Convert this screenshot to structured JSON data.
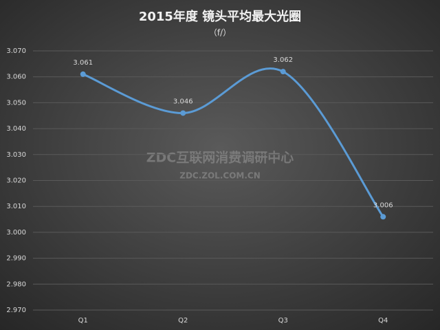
{
  "chart_data": {
    "type": "line",
    "title": "2015年度 镜头平均最大光圈",
    "subtitle": "（f/）",
    "watermark": "ZDC互联网消费调研中心",
    "watermark_url": "ZDC.ZOL.COM.CN",
    "categories": [
      "Q1",
      "Q2",
      "Q3",
      "Q4"
    ],
    "values": [
      3.061,
      3.046,
      3.062,
      3.006
    ],
    "color": "#5b9bd5",
    "smooth": true,
    "ylim": [
      2.97,
      3.07
    ],
    "yticks": [
      {
        "value": 2.97,
        "label": "2.970"
      },
      {
        "value": 2.98,
        "label": "2.980"
      },
      {
        "value": 2.99,
        "label": "2.990"
      },
      {
        "value": 3.0,
        "label": "3.000"
      },
      {
        "value": 3.01,
        "label": "3.010"
      },
      {
        "value": 3.02,
        "label": "3.020"
      },
      {
        "value": 3.03,
        "label": "3.030"
      },
      {
        "value": 3.04,
        "label": "3.040"
      },
      {
        "value": 3.05,
        "label": "3.050"
      },
      {
        "value": 3.06,
        "label": "3.060"
      },
      {
        "value": 3.07,
        "label": "3.070"
      }
    ],
    "grid": true
  }
}
